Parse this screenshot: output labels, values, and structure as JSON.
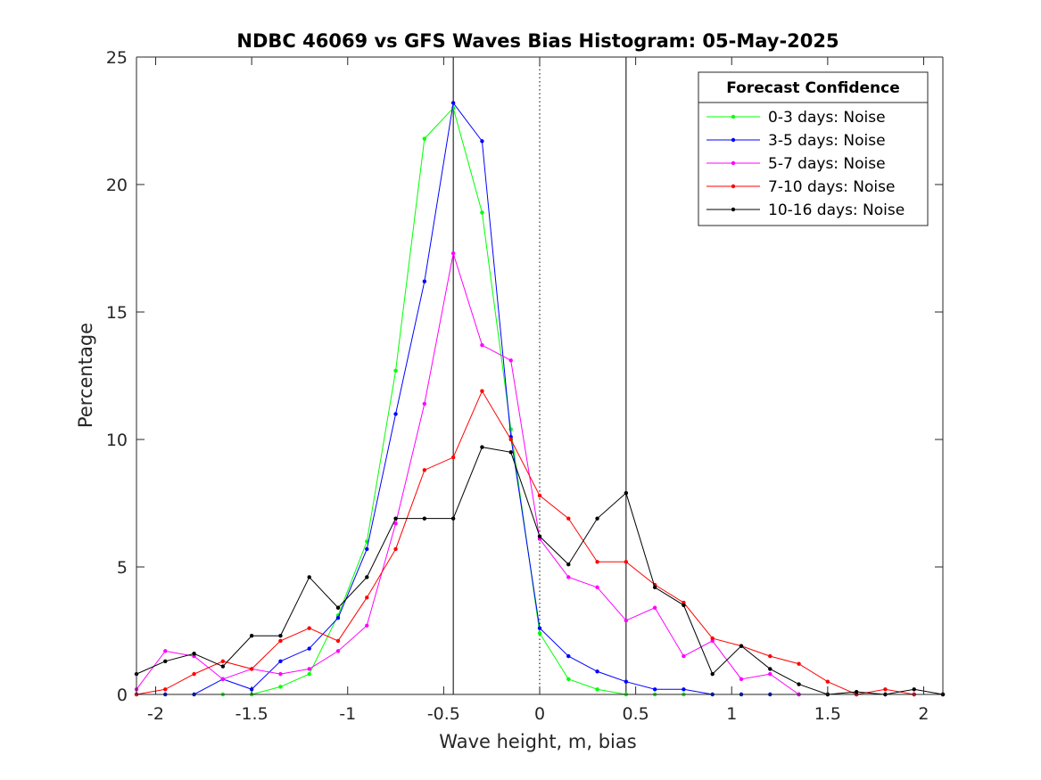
{
  "chart_data": {
    "type": "line",
    "title": "NDBC 46069 vs GFS Waves Bias Histogram: 05-May-2025",
    "xlabel": "Wave height, m, bias",
    "ylabel": "Percentage",
    "xlim": [
      -2.1,
      2.1
    ],
    "ylim": [
      0,
      25
    ],
    "xticks": [
      -2,
      -1.5,
      -1,
      -0.5,
      0,
      0.5,
      1,
      1.5,
      2
    ],
    "xtick_labels": [
      "-2",
      "-1.5",
      "-1",
      "-0.5",
      "0",
      "0.5",
      "1",
      "1.5",
      "2"
    ],
    "yticks": [
      0,
      5,
      10,
      15,
      20,
      25
    ],
    "ytick_labels": [
      "0",
      "5",
      "10",
      "15",
      "20",
      "25"
    ],
    "grid": false,
    "legend_title": "Forecast Confidence",
    "legend_position": "top-right",
    "vertical_lines": [
      {
        "x": -0.45,
        "style": "solid"
      },
      {
        "x": 0,
        "style": "dotted"
      },
      {
        "x": 0.45,
        "style": "solid"
      }
    ],
    "x": [
      -2.1,
      -1.95,
      -1.8,
      -1.65,
      -1.5,
      -1.35,
      -1.2,
      -1.05,
      -0.9,
      -0.75,
      -0.6,
      -0.45,
      -0.3,
      -0.15,
      0,
      0.15,
      0.3,
      0.45,
      0.6,
      0.75,
      0.9,
      1.05,
      1.2,
      1.35,
      1.5,
      1.65,
      1.8,
      1.95,
      2.1
    ],
    "series": [
      {
        "name": "0-3 days: Noise",
        "color": "#00ff00",
        "values": [
          0,
          0,
          0,
          0,
          0,
          0.3,
          0.8,
          3.1,
          6.0,
          12.7,
          21.8,
          23.0,
          18.9,
          10.4,
          2.4,
          0.6,
          0.2,
          0,
          0,
          0,
          0,
          0,
          0,
          0,
          0,
          0,
          0,
          0,
          0
        ]
      },
      {
        "name": "3-5 days: Noise",
        "color": "#0000ff",
        "values": [
          0,
          0,
          0,
          0.6,
          0.2,
          1.3,
          1.8,
          3.0,
          5.7,
          11.0,
          16.2,
          23.2,
          21.7,
          10.1,
          2.6,
          1.5,
          0.9,
          0.5,
          0.2,
          0.2,
          0,
          0,
          0,
          0,
          0,
          0,
          0,
          0,
          0
        ]
      },
      {
        "name": "5-7 days: Noise",
        "color": "#ff00ff",
        "values": [
          0.2,
          1.7,
          1.5,
          0.6,
          1.0,
          0.8,
          1.0,
          1.7,
          2.7,
          6.7,
          11.4,
          17.3,
          13.7,
          13.1,
          6.1,
          4.6,
          4.2,
          2.9,
          3.4,
          1.5,
          2.1,
          0.6,
          0.8,
          0,
          0,
          0,
          0,
          0,
          0
        ]
      },
      {
        "name": "7-10 days: Noise",
        "color": "#ff0000",
        "values": [
          0,
          0.2,
          0.8,
          1.3,
          1.0,
          2.1,
          2.6,
          2.1,
          3.8,
          5.7,
          8.8,
          9.3,
          11.9,
          10.0,
          7.8,
          6.9,
          5.2,
          5.2,
          4.3,
          3.6,
          2.2,
          1.9,
          1.5,
          1.2,
          0.5,
          0,
          0.2,
          0,
          0
        ]
      },
      {
        "name": "10-16 days: Noise",
        "color": "#000000",
        "values": [
          0.8,
          1.3,
          1.6,
          1.1,
          2.3,
          2.3,
          4.6,
          3.4,
          4.6,
          6.9,
          6.9,
          6.9,
          9.7,
          9.5,
          6.2,
          5.1,
          6.9,
          7.9,
          4.2,
          3.5,
          0.8,
          1.9,
          1.0,
          0.4,
          0,
          0.1,
          0,
          0.2,
          0
        ]
      }
    ]
  }
}
